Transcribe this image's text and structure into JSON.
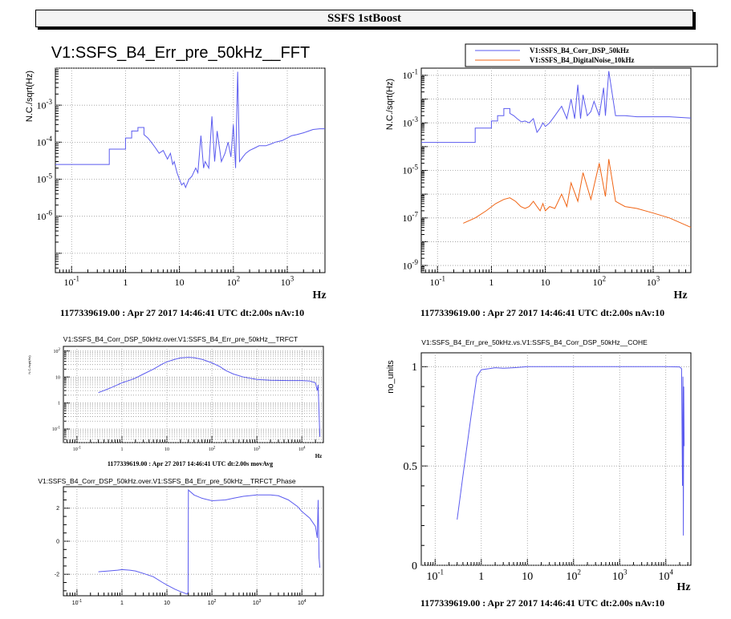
{
  "page_title": "SSFS 1stBoost",
  "colors": {
    "blue": "#5b5bef",
    "orange": "#f06414",
    "grid": "#9a9a9a"
  },
  "chart_data": [
    {
      "id": "fft",
      "type": "line",
      "title": "V1:SSFS_B4_Err_pre_50kHz__FFT",
      "xlabel": "Hz",
      "ylabel": "N.C./sqrt(Hz)",
      "xscale": "log",
      "yscale": "log",
      "xlim": [
        0.05,
        5000
      ],
      "ylim": [
        3e-08,
        0.01
      ],
      "footer": "1177339619.00 : Apr 27 2017 14:46:41 UTC dt:2.00s nAv:10",
      "grid": true,
      "series": [
        {
          "color": "#5b5bef",
          "x": [
            0.05,
            0.5,
            0.5,
            1.0,
            1.0,
            1.3,
            1.3,
            1.7,
            1.7,
            2.2,
            2.2,
            2.6,
            3.0,
            3.6,
            4.2,
            5.0,
            6.0,
            6.8,
            7.5,
            8,
            9,
            10,
            11,
            12,
            13,
            15,
            17,
            20,
            22,
            25,
            28,
            30,
            35,
            40,
            45,
            50,
            60,
            70,
            80,
            90,
            100,
            110,
            120,
            130,
            150,
            170,
            200,
            250,
            300,
            400,
            500,
            600,
            800,
            1000,
            1200,
            1500,
            2000,
            2500,
            3000,
            4000,
            5000
          ],
          "y": [
            2.5e-05,
            2.5e-05,
            6.5e-05,
            6.5e-05,
            0.00013,
            0.00013,
            0.0002,
            0.0002,
            0.00025,
            0.00025,
            0.00016,
            0.00013,
            0.0001,
            7e-05,
            5e-05,
            6e-05,
            3.5e-05,
            5e-05,
            2.5e-05,
            3e-05,
            1.5e-05,
            1e-05,
            7e-06,
            8e-06,
            6e-06,
            1e-05,
            1.2e-05,
            2e-05,
            1.5e-05,
            0.00015,
            2e-05,
            3e-05,
            2e-05,
            0.0005,
            3e-05,
            0.0002,
            3e-05,
            5e-05,
            0.0001,
            4e-05,
            0.0003,
            2e-05,
            0.008,
            3e-05,
            4e-05,
            5e-05,
            6e-05,
            7e-05,
            8e-05,
            8e-05,
            9e-05,
            0.0001,
            0.00011,
            0.00013,
            0.00015,
            0.00016,
            0.00018,
            0.0002,
            0.00022,
            0.00023,
            0.00023
          ]
        }
      ]
    },
    {
      "id": "spectrum",
      "type": "line",
      "title": "",
      "xlabel": "Hz",
      "ylabel": "N.C./sqrt(Hz)",
      "xscale": "log",
      "yscale": "log",
      "xlim": [
        0.05,
        5000
      ],
      "ylim": [
        5e-10,
        0.2
      ],
      "footer": "1177339619.00 : Apr 27 2017 14:46:41 UTC dt:2.00s nAv:10",
      "grid": true,
      "legend": "top-right",
      "series": [
        {
          "name": "V1:SSFS_B4_Corr_DSP_50kHz",
          "color": "#5b5bef",
          "x": [
            0.05,
            0.5,
            0.5,
            1.0,
            1.0,
            1.3,
            1.3,
            1.7,
            1.7,
            2.2,
            2.2,
            2.6,
            3.0,
            3.6,
            4.2,
            5,
            6,
            7,
            8,
            9,
            10,
            12,
            15,
            20,
            25,
            30,
            35,
            40,
            45,
            50,
            60,
            70,
            80,
            100,
            120,
            130,
            150,
            200,
            300,
            500,
            1000,
            2000,
            5000
          ],
          "y": [
            0.00015,
            0.00015,
            0.0006,
            0.0006,
            0.0012,
            0.0012,
            0.002,
            0.002,
            0.004,
            0.004,
            0.0025,
            0.002,
            0.0015,
            0.0011,
            0.0012,
            0.001,
            0.0015,
            0.0004,
            0.0006,
            0.001,
            0.0007,
            0.001,
            0.002,
            0.005,
            0.0015,
            0.01,
            0.0015,
            0.04,
            0.0015,
            0.015,
            0.002,
            0.003,
            0.008,
            0.002,
            0.03,
            0.002,
            0.15,
            0.002,
            0.002,
            0.0018,
            0.0018,
            0.0018,
            0.0016
          ]
        },
        {
          "name": "V1:SSFS_B4_DigitalNoise_10kHz",
          "color": "#f06414",
          "x": [
            0.3,
            0.5,
            0.8,
            1.2,
            1.7,
            2.2,
            2.8,
            3.5,
            4.2,
            5,
            6,
            7,
            8,
            9,
            10,
            12,
            15,
            20,
            25,
            30,
            40,
            50,
            70,
            100,
            130,
            150,
            200,
            300,
            500,
            1000,
            2000,
            5000
          ],
          "y": [
            6e-08,
            1e-07,
            2e-07,
            4e-07,
            6e-07,
            7e-07,
            5e-07,
            3e-07,
            2.5e-07,
            3e-07,
            5e-07,
            3e-07,
            2e-07,
            4e-07,
            2e-07,
            3e-07,
            2.5e-07,
            1e-06,
            3e-07,
            3e-06,
            5e-07,
            8e-06,
            6e-07,
            2e-05,
            8e-07,
            3e-05,
            5e-07,
            3e-07,
            2.5e-07,
            1.6e-07,
            1e-07,
            4e-08
          ]
        }
      ]
    },
    {
      "id": "trfct",
      "type": "line",
      "title": "V1:SSFS_B4_Corr_DSP_50kHz.over.V1:SSFS_B4_Err_pre_50kHz__TRFCT",
      "xlabel": "Hz",
      "ylabel": "N.C./sqrt(Hz)",
      "xscale": "log",
      "yscale": "log",
      "xlim": [
        0.05,
        30000
      ],
      "ylim": [
        0.03,
        150
      ],
      "footer": "1177339619.00 : Apr 27 2017 14:46:41 UTC dt:2.00s movAvg",
      "grid": true,
      "series": [
        {
          "color": "#5b5bef",
          "x": [
            0.3,
            0.5,
            0.8,
            1,
            1.5,
            2,
            3,
            5,
            8,
            10,
            15,
            20,
            30,
            40,
            60,
            100,
            150,
            200,
            300,
            500,
            1000,
            2000,
            5000,
            10000,
            15000,
            20000,
            22000,
            23000,
            25000
          ],
          "y": [
            2.5,
            3.5,
            5,
            6,
            7.5,
            9,
            13,
            20,
            32,
            38,
            48,
            54,
            57,
            55,
            48,
            35,
            25,
            18,
            13,
            10,
            8,
            7.5,
            7.3,
            7.3,
            7,
            6,
            3,
            5,
            0.05
          ]
        }
      ]
    },
    {
      "id": "phase",
      "type": "line",
      "title": "V1:SSFS_B4_Corr_DSP_50kHz.over.V1:SSFS_B4_Err_pre_50kHz__TRFCT_Phase",
      "xlabel": "",
      "ylabel": "",
      "xscale": "log",
      "yscale": "linear",
      "xlim": [
        0.05,
        30000
      ],
      "ylim": [
        -3.3,
        3.3
      ],
      "footer": "",
      "grid": true,
      "series": [
        {
          "color": "#5b5bef",
          "x": [
            0.3,
            0.5,
            0.8,
            1,
            1.5,
            2,
            3,
            5,
            8,
            10,
            15,
            20,
            28,
            29.5,
            30,
            40,
            60,
            100,
            200,
            300,
            500,
            1000,
            2000,
            3000,
            5000,
            8000,
            10000,
            15000,
            20000,
            22000,
            23000,
            24000,
            25000
          ],
          "y": [
            -1.85,
            -1.8,
            -1.75,
            -1.72,
            -1.75,
            -1.8,
            -1.95,
            -2.15,
            -2.5,
            -2.65,
            -2.9,
            -3.05,
            -3.2,
            -3.1,
            3.1,
            2.8,
            2.6,
            2.45,
            2.5,
            2.6,
            2.72,
            2.8,
            2.8,
            2.75,
            2.5,
            2.1,
            1.8,
            1.4,
            0.9,
            0.2,
            2.5,
            -1,
            -1.6
          ]
        }
      ]
    },
    {
      "id": "cohe",
      "type": "line",
      "title": "V1:SSFS_B4_Err_pre_50kHz.vs.V1:SSFS_B4_Corr_DSP_50kHz__COHE",
      "xlabel": "Hz",
      "ylabel": "no_units",
      "xscale": "log",
      "yscale": "linear",
      "xlim": [
        0.05,
        35000
      ],
      "ylim": [
        0,
        1.07
      ],
      "footer": "1177339619.00 : Apr 27 2017 14:46:41 UTC dt:2.00s nAv:10",
      "grid": true,
      "series": [
        {
          "color": "#5b5bef",
          "x": [
            0.3,
            0.4,
            0.6,
            0.8,
            1,
            1.5,
            2,
            3,
            5,
            8,
            10,
            30,
            100,
            1000,
            10000,
            20000,
            22000,
            23000,
            23500,
            24000,
            24500,
            25000
          ],
          "y": [
            0.23,
            0.45,
            0.75,
            0.95,
            0.985,
            0.99,
            0.995,
            0.992,
            0.995,
            0.998,
            1.0,
            1.0,
            1.0,
            1.0,
            1.0,
            0.999,
            0.99,
            0.4,
            0.95,
            0.15,
            0.9,
            0.6
          ]
        }
      ]
    }
  ]
}
